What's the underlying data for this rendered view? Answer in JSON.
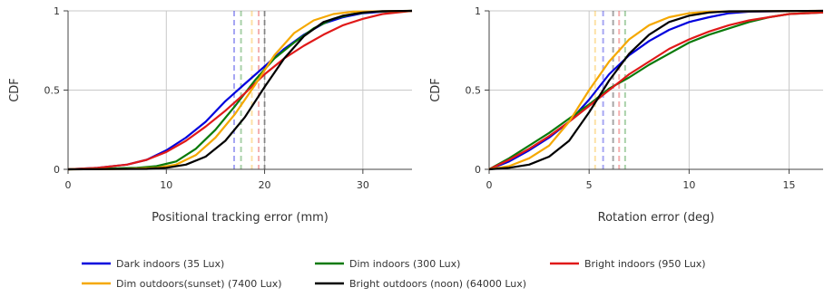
{
  "legend": [
    {
      "name": "Dark indoors (35 Lux)",
      "color": "#0000dd"
    },
    {
      "name": "Dim indoors (300 Lux)",
      "color": "#0a7a0a"
    },
    {
      "name": "Bright indoors (950 Lux)",
      "color": "#e01919"
    },
    {
      "name": "Dim outdoors(sunset) (7400 Lux)",
      "color": "#f5a800"
    },
    {
      "name": "Bright outdoors (noon) (64000 Lux)",
      "color": "#000000"
    }
  ],
  "chart_data": [
    {
      "type": "line",
      "xlabel": "Positional tracking error (mm)",
      "ylabel": "CDF",
      "xlim": [
        0,
        35
      ],
      "ylim": [
        0,
        1
      ],
      "xticks": [
        0,
        10,
        20,
        30
      ],
      "yticks": [
        0,
        0.5,
        1
      ],
      "ytick_labels": [
        "0",
        "0.5",
        "1"
      ],
      "grid": true,
      "series": [
        {
          "name": "Dark indoors (35 Lux)",
          "color": "#0000dd",
          "mean": 16.9,
          "points": [
            [
              0,
              0
            ],
            [
              3,
              0.01
            ],
            [
              6,
              0.03
            ],
            [
              8,
              0.06
            ],
            [
              10,
              0.12
            ],
            [
              12,
              0.2
            ],
            [
              14,
              0.3
            ],
            [
              16,
              0.43
            ],
            [
              18,
              0.54
            ],
            [
              20,
              0.65
            ],
            [
              22,
              0.76
            ],
            [
              24,
              0.85
            ],
            [
              26,
              0.92
            ],
            [
              28,
              0.96
            ],
            [
              30,
              0.985
            ],
            [
              32,
              0.995
            ],
            [
              35,
              1.0
            ]
          ]
        },
        {
          "name": "Dim indoors (300 Lux)",
          "color": "#0a7a0a",
          "mean": 17.6,
          "points": [
            [
              0,
              0
            ],
            [
              4,
              0.005
            ],
            [
              7,
              0.01
            ],
            [
              9,
              0.02
            ],
            [
              11,
              0.05
            ],
            [
              13,
              0.13
            ],
            [
              15,
              0.25
            ],
            [
              17,
              0.4
            ],
            [
              19,
              0.56
            ],
            [
              21,
              0.7
            ],
            [
              23,
              0.8
            ],
            [
              25,
              0.89
            ],
            [
              27,
              0.95
            ],
            [
              29,
              0.98
            ],
            [
              31,
              0.995
            ],
            [
              35,
              1.0
            ]
          ]
        },
        {
          "name": "Bright indoors (950 Lux)",
          "color": "#e01919",
          "mean": 19.4,
          "points": [
            [
              0,
              0
            ],
            [
              3,
              0.01
            ],
            [
              6,
              0.03
            ],
            [
              8,
              0.06
            ],
            [
              10,
              0.11
            ],
            [
              12,
              0.18
            ],
            [
              14,
              0.27
            ],
            [
              16,
              0.37
            ],
            [
              18,
              0.48
            ],
            [
              20,
              0.6
            ],
            [
              22,
              0.7
            ],
            [
              24,
              0.78
            ],
            [
              26,
              0.85
            ],
            [
              28,
              0.91
            ],
            [
              30,
              0.95
            ],
            [
              32,
              0.98
            ],
            [
              35,
              1.0
            ]
          ]
        },
        {
          "name": "Dim outdoors(sunset) (7400 Lux)",
          "color": "#f5a800",
          "mean": 18.7,
          "points": [
            [
              0,
              0
            ],
            [
              6,
              0.003
            ],
            [
              9,
              0.01
            ],
            [
              11,
              0.03
            ],
            [
              13,
              0.09
            ],
            [
              15,
              0.2
            ],
            [
              17,
              0.35
            ],
            [
              19,
              0.53
            ],
            [
              21,
              0.72
            ],
            [
              23,
              0.86
            ],
            [
              25,
              0.94
            ],
            [
              27,
              0.98
            ],
            [
              29,
              0.995
            ],
            [
              35,
              1.0
            ]
          ]
        },
        {
          "name": "Bright outdoors (noon) (64000 Lux)",
          "color": "#000000",
          "mean": 20.0,
          "points": [
            [
              0,
              0
            ],
            [
              8,
              0.003
            ],
            [
              10,
              0.01
            ],
            [
              12,
              0.03
            ],
            [
              14,
              0.08
            ],
            [
              16,
              0.18
            ],
            [
              18,
              0.33
            ],
            [
              20,
              0.52
            ],
            [
              22,
              0.7
            ],
            [
              24,
              0.84
            ],
            [
              26,
              0.93
            ],
            [
              28,
              0.97
            ],
            [
              30,
              0.99
            ],
            [
              32,
              0.998
            ],
            [
              35,
              1.0
            ]
          ]
        }
      ]
    },
    {
      "type": "line",
      "xlabel": "Rotation error (deg)",
      "ylabel": "CDF",
      "xlim": [
        0,
        16.7
      ],
      "ylim": [
        0,
        1
      ],
      "xticks": [
        0,
        5,
        10,
        15
      ],
      "yticks": [
        0,
        0.5,
        1
      ],
      "ytick_labels": [
        "0",
        "0.5",
        "1"
      ],
      "grid": true,
      "series": [
        {
          "name": "Dark indoors (35 Lux)",
          "color": "#0000dd",
          "mean": 5.7,
          "points": [
            [
              0,
              0
            ],
            [
              1,
              0.05
            ],
            [
              2,
              0.12
            ],
            [
              3,
              0.2
            ],
            [
              4,
              0.3
            ],
            [
              5,
              0.44
            ],
            [
              6,
              0.6
            ],
            [
              7,
              0.72
            ],
            [
              8,
              0.81
            ],
            [
              9,
              0.88
            ],
            [
              10,
              0.93
            ],
            [
              11,
              0.96
            ],
            [
              12,
              0.985
            ],
            [
              13,
              0.995
            ],
            [
              16.7,
              1.0
            ]
          ]
        },
        {
          "name": "Dim indoors (300 Lux)",
          "color": "#0a7a0a",
          "mean": 6.8,
          "points": [
            [
              0,
              0
            ],
            [
              1,
              0.07
            ],
            [
              2,
              0.15
            ],
            [
              3,
              0.23
            ],
            [
              4,
              0.32
            ],
            [
              5,
              0.41
            ],
            [
              6,
              0.51
            ],
            [
              7,
              0.58
            ],
            [
              8,
              0.66
            ],
            [
              9,
              0.73
            ],
            [
              10,
              0.8
            ],
            [
              11,
              0.85
            ],
            [
              12,
              0.89
            ],
            [
              13,
              0.93
            ],
            [
              14,
              0.96
            ],
            [
              15,
              0.98
            ],
            [
              16.7,
              0.99
            ]
          ]
        },
        {
          "name": "Bright indoors (950 Lux)",
          "color": "#e01919",
          "mean": 6.5,
          "points": [
            [
              0,
              0
            ],
            [
              1,
              0.06
            ],
            [
              2,
              0.13
            ],
            [
              3,
              0.21
            ],
            [
              4,
              0.3
            ],
            [
              5,
              0.4
            ],
            [
              6,
              0.5
            ],
            [
              7,
              0.6
            ],
            [
              8,
              0.68
            ],
            [
              9,
              0.76
            ],
            [
              10,
              0.82
            ],
            [
              11,
              0.87
            ],
            [
              12,
              0.91
            ],
            [
              13,
              0.94
            ],
            [
              14,
              0.96
            ],
            [
              15,
              0.98
            ],
            [
              16.7,
              0.99
            ]
          ]
        },
        {
          "name": "Dim outdoors(sunset) (7400 Lux)",
          "color": "#f5a800",
          "mean": 5.3,
          "points": [
            [
              0,
              0
            ],
            [
              1,
              0.02
            ],
            [
              2,
              0.07
            ],
            [
              3,
              0.15
            ],
            [
              4,
              0.3
            ],
            [
              5,
              0.5
            ],
            [
              6,
              0.68
            ],
            [
              7,
              0.82
            ],
            [
              8,
              0.91
            ],
            [
              9,
              0.96
            ],
            [
              10,
              0.985
            ],
            [
              11,
              0.995
            ],
            [
              16.7,
              1.0
            ]
          ]
        },
        {
          "name": "Bright outdoors (noon) (64000 Lux)",
          "color": "#000000",
          "mean": 6.2,
          "points": [
            [
              0,
              0
            ],
            [
              1,
              0.01
            ],
            [
              2,
              0.03
            ],
            [
              3,
              0.08
            ],
            [
              4,
              0.18
            ],
            [
              5,
              0.36
            ],
            [
              6,
              0.56
            ],
            [
              7,
              0.73
            ],
            [
              8,
              0.85
            ],
            [
              9,
              0.93
            ],
            [
              10,
              0.97
            ],
            [
              11,
              0.99
            ],
            [
              12,
              0.997
            ],
            [
              16.7,
              1.0
            ]
          ]
        }
      ]
    }
  ]
}
